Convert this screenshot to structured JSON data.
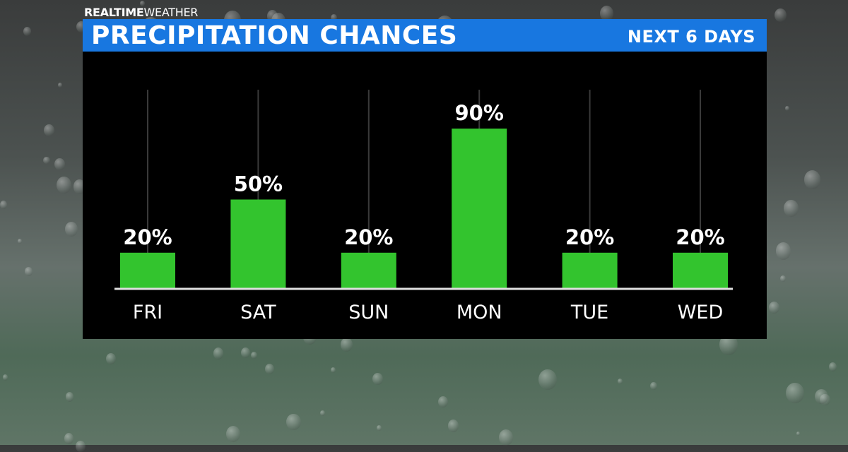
{
  "brand": {
    "bold": "REALTIME",
    "light": "WEATHER"
  },
  "header": {
    "title": "PRECIPITATION CHANCES",
    "subtitle": "NEXT 6 DAYS"
  },
  "colors": {
    "header": "#1877e0",
    "bar": "#33c42e",
    "panel": "#000000"
  },
  "chart_data": {
    "type": "bar",
    "title": "PRECIPITATION CHANCES",
    "subtitle": "NEXT 6 DAYS",
    "categories": [
      "FRI",
      "SAT",
      "SUN",
      "MON",
      "TUE",
      "WED"
    ],
    "values": [
      20,
      50,
      20,
      90,
      20,
      20
    ],
    "data_labels": [
      "20%",
      "50%",
      "20%",
      "90%",
      "20%",
      "20%"
    ],
    "unit": "%",
    "ylim": [
      0,
      100
    ],
    "grid": true
  }
}
